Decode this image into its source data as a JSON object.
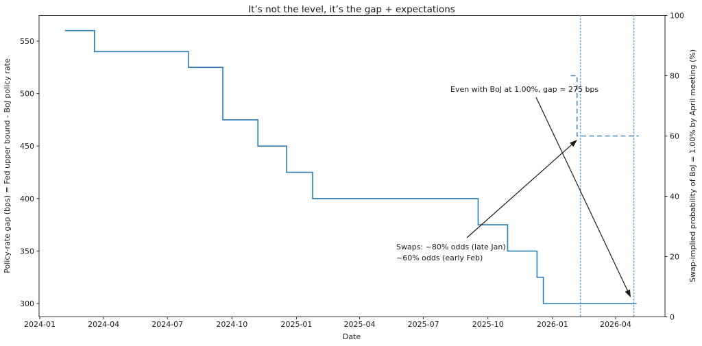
{
  "accent_color": "#1f77b4",
  "guide_color": "#4f96c6",
  "text_color": "#1a1a1a",
  "chart_data": {
    "type": "line",
    "title": "It’s not the level, it’s the gap + expectations",
    "xlabel": "Date",
    "ylabel_left": "Policy-rate gap (bps) = Fed upper bound - BoJ policy rate",
    "ylabel_right": "Swap-implied probability of BoJ = 1.00% by April meeting (%)",
    "x_ticks": [
      "2024-01",
      "2024-04",
      "2024-07",
      "2024-10",
      "2025-01",
      "2025-04",
      "2025-07",
      "2025-10",
      "2026-01",
      "2026-04"
    ],
    "y_ticks_left": [
      550,
      500,
      450,
      400,
      350,
      300
    ],
    "y_ticks_right": [
      100,
      80,
      60,
      40,
      20,
      0
    ],
    "ylim_left": [
      287,
      573
    ],
    "ylim_right": [
      0,
      100
    ],
    "grid": false,
    "legend": "none",
    "series": [
      {
        "name": "policy-rate-gap-bps",
        "axis": "left",
        "style": "solid",
        "step": "post",
        "color": "#2a7cb4",
        "points": [
          [
            "2024-02-06",
            560
          ],
          [
            "2024-03-19",
            540
          ],
          [
            "2024-07-31",
            525
          ],
          [
            "2024-09-18",
            475
          ],
          [
            "2024-11-07",
            450
          ],
          [
            "2024-12-18",
            425
          ],
          [
            "2025-01-24",
            400
          ],
          [
            "2025-09-17",
            375
          ],
          [
            "2025-10-29",
            350
          ],
          [
            "2025-12-10",
            325
          ],
          [
            "2025-12-19",
            300
          ],
          [
            "2026-05-01",
            300
          ]
        ]
      },
      {
        "name": "swap-implied-probability-pct",
        "axis": "right",
        "style": "dashed",
        "color": "#4688bc",
        "points": [
          [
            "2026-01-27",
            80
          ],
          [
            "2026-02-05",
            80
          ],
          [
            "2026-02-05",
            60
          ],
          [
            "2026-05-04",
            60
          ]
        ]
      }
    ],
    "vlines": [
      {
        "name": "early-feb-2026",
        "date": "2026-02-10",
        "style": "dotted",
        "color": "#5f9fca"
      },
      {
        "name": "april-2026-boj-meeting",
        "date": "2026-04-27",
        "style": "dotted",
        "color": "#5f9fca"
      }
    ],
    "annotations": [
      {
        "name": "gap-at-boj-1pct",
        "text": "Even with BoJ at 1.00%, gap ≈ 275 bps"
      },
      {
        "name": "swap-odds",
        "lines": [
          "Swaps: ~80% odds (late Jan)",
          "~60% odds (early Feb)"
        ]
      }
    ]
  }
}
